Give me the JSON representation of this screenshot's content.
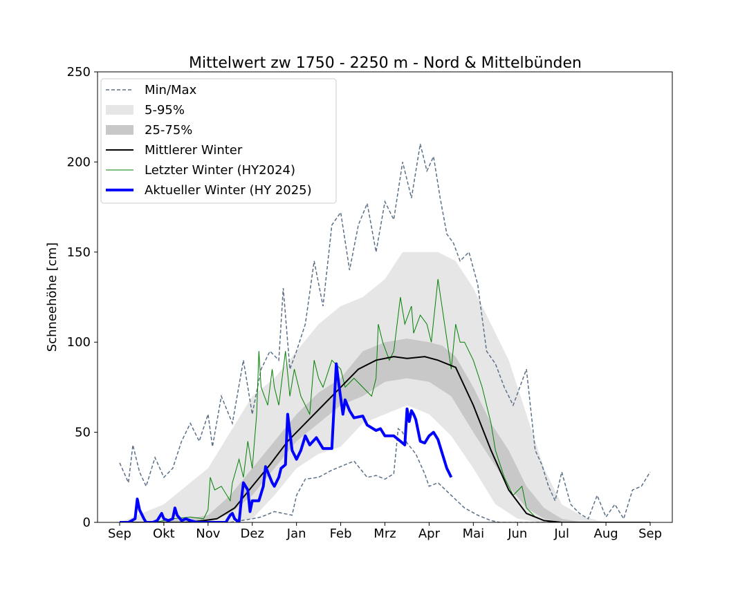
{
  "chart_data": {
    "type": "area",
    "title": "Mittelwert zw 1750 - 2250 m - Nord & Mittelbünden",
    "xlabel": "",
    "ylabel": "Schneehöhe [cm]",
    "ylim": [
      0,
      250
    ],
    "yticks": [
      0,
      50,
      100,
      150,
      200,
      250
    ],
    "xlim": [
      -0.5,
      12.5
    ],
    "xticks": [
      0,
      1,
      2,
      3,
      4,
      5,
      6,
      7,
      8,
      9,
      10,
      11,
      12
    ],
    "categories": [
      "Sep",
      "Okt",
      "Nov",
      "Dez",
      "Jan",
      "Feb",
      "Mrz",
      "Apr",
      "Mai",
      "Jun",
      "Jul",
      "Aug",
      "Sep"
    ],
    "grid": false,
    "legend_position": "top-left",
    "colors": {
      "minmax": "#5a6e86",
      "band_5_95": "#e6e6e6",
      "band_25_75": "#c8c8c8",
      "mean": "#000000",
      "last": "#008000",
      "current": "#0000ff"
    },
    "legend": [
      {
        "label": "Min/Max",
        "style": "dashed"
      },
      {
        "label": "5-95%",
        "style": "band-light"
      },
      {
        "label": "25-75%",
        "style": "band-dark"
      },
      {
        "label": "Mittlerer Winter",
        "style": "line-black"
      },
      {
        "label": "Letzter Winter (HY2024)",
        "style": "line-green"
      },
      {
        "label": "Aktueller Winter (HY 2025)",
        "style": "line-blue"
      }
    ],
    "series": [
      {
        "name": "Max",
        "x": [
          0,
          0.2,
          0.3,
          0.45,
          0.6,
          0.8,
          1.0,
          1.2,
          1.4,
          1.6,
          1.8,
          2.0,
          2.1,
          2.3,
          2.55,
          2.8,
          3.0,
          3.2,
          3.4,
          3.6,
          3.7,
          3.85,
          4.0,
          4.2,
          4.4,
          4.6,
          4.8,
          5.0,
          5.2,
          5.4,
          5.6,
          5.8,
          6.0,
          6.2,
          6.4,
          6.6,
          6.8,
          6.95,
          7.1,
          7.25,
          7.4,
          7.55,
          7.7,
          7.9,
          8.1,
          8.3,
          8.5,
          8.7,
          8.9,
          9.05,
          9.2,
          9.4,
          9.55,
          9.7,
          9.85,
          10.0,
          10.2,
          10.4,
          10.6,
          10.8,
          11.0,
          11.2,
          11.4,
          11.6,
          11.8,
          12.0
        ],
        "values": [
          33,
          22,
          43,
          28,
          20,
          36,
          25,
          30,
          45,
          55,
          45,
          60,
          42,
          70,
          55,
          90,
          60,
          85,
          95,
          90,
          130,
          85,
          95,
          110,
          145,
          120,
          165,
          172,
          140,
          165,
          177,
          150,
          178,
          168,
          200,
          180,
          210,
          195,
          203,
          180,
          160,
          155,
          145,
          150,
          132,
          95,
          88,
          75,
          65,
          75,
          85,
          40,
          32,
          20,
          12,
          28,
          10,
          5,
          2,
          15,
          3,
          10,
          2,
          18,
          20,
          28
        ]
      },
      {
        "name": "Min",
        "x": [
          0,
          2.0,
          2.5,
          3.0,
          3.2,
          3.5,
          3.9,
          4.0,
          4.2,
          4.5,
          4.8,
          5.0,
          5.3,
          5.6,
          5.8,
          6.0,
          6.2,
          6.3,
          6.4,
          6.5,
          6.7,
          6.9,
          7.0,
          7.2,
          7.5,
          7.8,
          8.1,
          8.4,
          8.6,
          9.0,
          12.0
        ],
        "values": [
          0,
          0,
          0,
          2,
          3,
          6,
          4,
          15,
          24,
          25,
          29,
          31,
          34,
          25,
          26,
          24,
          27,
          52,
          50,
          44,
          38,
          27,
          20,
          22,
          15,
          8,
          4,
          1,
          0,
          0,
          0
        ]
      },
      {
        "name": "P95",
        "x": [
          0,
          0.5,
          1.0,
          1.5,
          2.0,
          2.5,
          3.0,
          3.5,
          4.0,
          4.5,
          5.0,
          5.5,
          6.0,
          6.4,
          6.8,
          7.2,
          7.6,
          8.0,
          8.4,
          8.8,
          9.2,
          9.6,
          10.0,
          10.5,
          11.0,
          12.0
        ],
        "values": [
          0,
          5,
          10,
          20,
          30,
          50,
          70,
          80,
          95,
          110,
          120,
          125,
          135,
          150,
          150,
          150,
          145,
          130,
          110,
          90,
          60,
          30,
          10,
          3,
          0,
          0
        ]
      },
      {
        "name": "P75",
        "x": [
          0,
          0.5,
          1.0,
          1.5,
          2.0,
          2.5,
          3.0,
          3.5,
          4.0,
          4.5,
          5.0,
          5.5,
          6.0,
          6.5,
          7.0,
          7.3,
          7.6,
          8.0,
          8.4,
          8.8,
          9.2,
          9.6,
          10.0,
          10.5,
          12.0
        ],
        "values": [
          0,
          0,
          1,
          2,
          4,
          15,
          30,
          45,
          60,
          72,
          80,
          95,
          100,
          102,
          100,
          98,
          92,
          75,
          55,
          40,
          20,
          8,
          2,
          0,
          0
        ]
      },
      {
        "name": "P25",
        "x": [
          0,
          1.5,
          2.0,
          2.5,
          3.0,
          3.5,
          4.0,
          4.5,
          5.0,
          5.5,
          6.0,
          6.5,
          7.0,
          7.5,
          8.0,
          8.4,
          8.8,
          9.2,
          9.6,
          10.0,
          12.0
        ],
        "values": [
          0,
          0,
          0,
          5,
          15,
          30,
          45,
          55,
          65,
          70,
          78,
          80,
          78,
          70,
          50,
          35,
          20,
          8,
          2,
          0,
          0
        ]
      },
      {
        "name": "P5",
        "x": [
          0,
          2.5,
          3.0,
          3.5,
          4.0,
          4.5,
          5.0,
          5.5,
          6.0,
          6.5,
          7.0,
          7.5,
          8.0,
          8.5,
          9.0,
          9.5,
          12.0
        ],
        "values": [
          0,
          0,
          2,
          15,
          30,
          38,
          42,
          55,
          60,
          65,
          60,
          48,
          30,
          10,
          2,
          0,
          0
        ]
      },
      {
        "name": "Mittlerer Winter",
        "x": [
          0,
          1.5,
          1.9,
          2.2,
          2.6,
          3.0,
          3.4,
          3.8,
          4.2,
          4.6,
          5.0,
          5.4,
          5.8,
          6.2,
          6.5,
          6.9,
          7.2,
          7.6,
          8.0,
          8.4,
          8.8,
          9.2,
          9.6,
          10.0,
          10.4,
          12.0
        ],
        "values": [
          0,
          0,
          1,
          2,
          8,
          20,
          32,
          45,
          55,
          65,
          75,
          85,
          90,
          92,
          91,
          92,
          90,
          86,
          65,
          40,
          18,
          5,
          1,
          0,
          0,
          0
        ]
      },
      {
        "name": "Letzter Winter (HY2024)",
        "x": [
          0,
          0.8,
          1.2,
          1.6,
          1.9,
          2.0,
          2.05,
          2.15,
          2.3,
          2.5,
          2.55,
          2.7,
          2.8,
          2.9,
          3.0,
          3.1,
          3.15,
          3.2,
          3.35,
          3.45,
          3.5,
          3.6,
          3.75,
          3.85,
          3.95,
          4.1,
          4.3,
          4.4,
          4.5,
          4.6,
          4.8,
          5.0,
          5.1,
          5.3,
          5.5,
          5.7,
          5.8,
          5.85,
          5.95,
          6.1,
          6.2,
          6.35,
          6.45,
          6.6,
          6.65,
          6.8,
          6.95,
          7.05,
          7.2,
          7.35,
          7.5,
          7.6,
          7.7,
          7.8,
          8.0,
          8.2,
          8.4,
          8.5,
          8.7,
          8.9,
          9.1,
          9.2,
          9.4,
          9.6,
          9.8,
          10.0,
          12.0
        ],
        "values": [
          0,
          0,
          2,
          3,
          2,
          7,
          25,
          18,
          20,
          12,
          22,
          35,
          25,
          45,
          30,
          60,
          95,
          75,
          65,
          85,
          75,
          65,
          95,
          70,
          85,
          70,
          60,
          90,
          80,
          75,
          90,
          85,
          75,
          80,
          75,
          70,
          80,
          110,
          100,
          90,
          95,
          125,
          110,
          120,
          105,
          115,
          110,
          100,
          135,
          110,
          85,
          110,
          100,
          100,
          90,
          75,
          55,
          40,
          25,
          15,
          20,
          8,
          3,
          1,
          0,
          0,
          0
        ]
      },
      {
        "name": "Aktueller Winter (HY 2025)",
        "x": [
          0,
          0.2,
          0.35,
          0.4,
          0.45,
          0.55,
          0.6,
          0.75,
          0.85,
          0.9,
          0.95,
          1.0,
          1.1,
          1.2,
          1.25,
          1.3,
          1.4,
          1.5,
          1.6,
          1.75,
          1.9,
          2.0,
          2.2,
          2.3,
          2.4,
          2.5,
          2.55,
          2.6,
          2.7,
          2.75,
          2.8,
          2.9,
          2.95,
          3.0,
          3.15,
          3.25,
          3.3,
          3.45,
          3.5,
          3.6,
          3.65,
          3.75,
          3.8,
          3.9,
          4.0,
          4.1,
          4.2,
          4.3,
          4.45,
          4.6,
          4.8,
          4.9,
          4.95,
          5.05,
          5.1,
          5.2,
          5.3,
          5.5,
          5.6,
          5.8,
          5.9,
          6.0,
          6.2,
          6.35,
          6.45,
          6.5,
          6.55,
          6.6,
          6.65,
          6.7,
          6.8,
          6.9,
          7.0,
          7.1,
          7.2,
          7.3,
          7.4,
          7.5
        ],
        "values": [
          0,
          0,
          2,
          13,
          7,
          2,
          0,
          0,
          1,
          3,
          5,
          2,
          1,
          2,
          8,
          4,
          1,
          2,
          1,
          0,
          0,
          0,
          0,
          0,
          0,
          4,
          5,
          2,
          0,
          12,
          22,
          18,
          6,
          12,
          12,
          20,
          31,
          22,
          20,
          25,
          30,
          32,
          60,
          40,
          35,
          40,
          48,
          43,
          47,
          41,
          41,
          88,
          78,
          60,
          68,
          62,
          58,
          59,
          54,
          51,
          52,
          48,
          48,
          45,
          43,
          63,
          56,
          62,
          60,
          57,
          45,
          44,
          48,
          50,
          46,
          38,
          30,
          25
        ]
      }
    ]
  }
}
